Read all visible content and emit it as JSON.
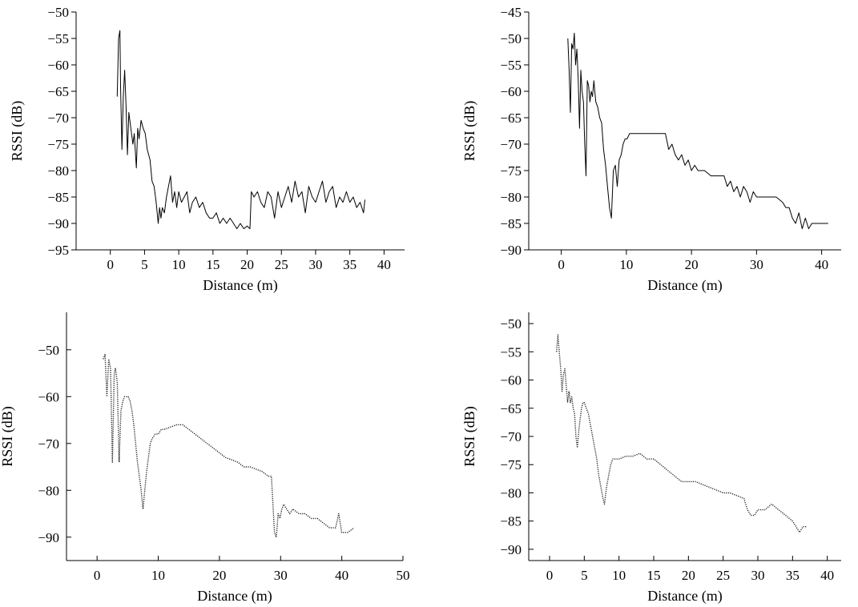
{
  "chart_data": [
    {
      "type": "line",
      "xlabel": "Distance (m)",
      "ylabel": "RSSI (dB)",
      "xlim": [
        -5,
        43
      ],
      "ylim": [
        -95,
        -50
      ],
      "xticks": [
        0,
        5,
        10,
        15,
        20,
        25,
        30,
        35,
        40
      ],
      "yticks": [
        -95,
        -90,
        -85,
        -80,
        -75,
        -70,
        -65,
        -60,
        -55,
        -50
      ],
      "line_style": "solid",
      "series": [
        {
          "x": [
            1.0,
            1.2,
            1.4,
            1.5,
            1.7,
            1.9,
            2.1,
            2.3,
            2.5,
            2.7,
            2.9,
            3.1,
            3.3,
            3.5,
            3.8,
            4.0,
            4.2,
            4.5,
            4.8,
            5.1,
            5.4,
            5.8,
            6.1,
            6.4,
            6.7,
            7.0,
            7.2,
            7.4,
            7.6,
            7.9,
            8.2,
            8.5,
            8.8,
            9.1,
            9.4,
            9.7,
            10.0,
            10.4,
            10.8,
            11.2,
            11.6,
            12.0,
            12.5,
            13.0,
            13.5,
            14.0,
            14.5,
            15.0,
            15.5,
            16.0,
            16.5,
            17.0,
            17.5,
            18.0,
            18.5,
            19.0,
            19.5,
            20.0,
            20.4,
            20.6,
            21.0,
            21.5,
            22.0,
            22.5,
            23.0,
            23.5,
            24.0,
            24.5,
            25.0,
            25.5,
            26.0,
            26.5,
            27.0,
            27.5,
            28.0,
            28.5,
            29.0,
            29.5,
            30.0,
            30.5,
            31.0,
            31.5,
            32.0,
            32.5,
            33.0,
            33.5,
            34.0,
            34.5,
            35.0,
            35.5,
            36.0,
            36.5,
            37.0,
            37.2
          ],
          "y": [
            -66,
            -55,
            -53.5,
            -64,
            -76,
            -66,
            -61,
            -68,
            -77,
            -69,
            -71,
            -73,
            -75,
            -73,
            -79.5,
            -72,
            -74,
            -70.5,
            -72,
            -73,
            -76,
            -78,
            -82,
            -83,
            -86,
            -90,
            -87,
            -89,
            -87,
            -88,
            -85,
            -83,
            -81,
            -86,
            -84,
            -87,
            -84,
            -86,
            -85,
            -84,
            -88,
            -86,
            -85,
            -87,
            -86,
            -88,
            -89,
            -89,
            -88,
            -90,
            -89,
            -90,
            -89,
            -90,
            -91,
            -90,
            -91,
            -90.5,
            -91,
            -84,
            -85,
            -84,
            -86,
            -87,
            -84,
            -85,
            -89,
            -84,
            -87,
            -85,
            -83,
            -86,
            -82,
            -85,
            -84,
            -88,
            -83,
            -85,
            -86,
            -84,
            -82,
            -86,
            -84,
            -83,
            -87,
            -85,
            -86,
            -84,
            -86,
            -85,
            -87,
            -86,
            -88,
            -85.5
          ]
        }
      ]
    },
    {
      "type": "line",
      "xlabel": "Distance (m)",
      "ylabel": "RSSI (dB)",
      "xlim": [
        -5,
        43
      ],
      "ylim": [
        -90,
        -45
      ],
      "xticks": [
        0,
        10,
        20,
        30,
        40
      ],
      "yticks": [
        -90,
        -85,
        -80,
        -75,
        -70,
        -65,
        -60,
        -55,
        -50,
        -45
      ],
      "line_style": "solid",
      "series": [
        {
          "x": [
            1.0,
            1.2,
            1.4,
            1.6,
            1.8,
            2.0,
            2.2,
            2.4,
            2.6,
            2.8,
            3.0,
            3.2,
            3.4,
            3.6,
            3.8,
            4.0,
            4.2,
            4.4,
            4.6,
            4.8,
            5.0,
            5.3,
            5.6,
            5.9,
            6.2,
            6.5,
            6.8,
            7.1,
            7.4,
            7.7,
            8.0,
            8.3,
            8.6,
            8.9,
            9.2,
            9.5,
            9.8,
            10.1,
            10.5,
            11.0,
            16.0,
            16.5,
            17.0,
            17.5,
            18.0,
            18.5,
            19.0,
            19.5,
            20.0,
            20.5,
            21.0,
            22.0,
            23.0,
            24.0,
            25.0,
            25.5,
            26.0,
            26.5,
            27.0,
            27.5,
            28.0,
            28.5,
            29.0,
            29.5,
            30.0,
            31.0,
            32.0,
            33.0,
            34.0,
            34.5,
            35.0,
            35.5,
            36.0,
            36.5,
            37.0,
            37.5,
            38.0,
            38.5,
            39.0,
            40.0,
            41.0
          ],
          "y": [
            -50,
            -56,
            -64,
            -51,
            -52,
            -49,
            -55,
            -52,
            -58,
            -67,
            -56,
            -60,
            -62,
            -70,
            -76,
            -58,
            -59,
            -62,
            -60,
            -61,
            -58,
            -62,
            -63,
            -65,
            -66,
            -71,
            -74,
            -78,
            -82,
            -84,
            -75,
            -74,
            -78,
            -73,
            -72,
            -70,
            -69,
            -69,
            -68,
            -68,
            -68,
            -71,
            -70,
            -72,
            -73,
            -72,
            -74,
            -73,
            -75,
            -74,
            -75,
            -75,
            -76,
            -76,
            -76,
            -78,
            -77,
            -79,
            -78,
            -80,
            -78,
            -79,
            -81,
            -79,
            -80,
            -80,
            -80,
            -80,
            -81,
            -82,
            -82,
            -84,
            -85,
            -83,
            -86,
            -84,
            -86,
            -85,
            -85,
            -85,
            -85
          ]
        }
      ]
    },
    {
      "type": "line",
      "xlabel": "Distance (m)",
      "ylabel": "RSSI (dB)",
      "xlim": [
        -5,
        50
      ],
      "ylim": [
        -95,
        -42
      ],
      "xticks": [
        0,
        10,
        20,
        30,
        40,
        50
      ],
      "yticks": [
        -90,
        -80,
        -70,
        -60,
        -50
      ],
      "line_style": "dotted",
      "series": [
        {
          "x": [
            1.0,
            1.3,
            1.6,
            1.9,
            2.2,
            2.5,
            2.8,
            3.0,
            3.3,
            3.6,
            3.9,
            4.2,
            4.5,
            4.8,
            5.1,
            5.4,
            5.7,
            6.0,
            6.3,
            6.6,
            6.9,
            7.2,
            7.5,
            7.8,
            8.1,
            8.4,
            8.7,
            9.0,
            9.5,
            10.0,
            10.5,
            11.0,
            12.0,
            13.0,
            14.0,
            15.0,
            16.0,
            17.0,
            18.0,
            19.0,
            20.0,
            21.0,
            22.0,
            23.0,
            24.0,
            25.0,
            26.0,
            27.0,
            28.0,
            28.5,
            29.0,
            29.3,
            29.6,
            29.9,
            30.2,
            30.5,
            31.0,
            31.5,
            32.0,
            33.0,
            34.0,
            35.0,
            36.0,
            37.0,
            38.0,
            39.0,
            39.5,
            40.0,
            41.0,
            42.0
          ],
          "y": [
            -52,
            -51,
            -60,
            -52,
            -54,
            -74,
            -55,
            -54,
            -57,
            -74,
            -63,
            -61,
            -60,
            -60,
            -60,
            -61,
            -63,
            -66,
            -70,
            -74,
            -77,
            -80,
            -84,
            -80,
            -76,
            -73,
            -70,
            -69,
            -68,
            -68,
            -67,
            -67,
            -66.5,
            -66,
            -66,
            -67,
            -68,
            -69,
            -70,
            -71,
            -72,
            -73,
            -73.5,
            -74,
            -75,
            -75,
            -75.5,
            -76,
            -77,
            -77,
            -89,
            -90,
            -85,
            -86,
            -84,
            -83,
            -84,
            -85,
            -84,
            -85,
            -85,
            -86,
            -86,
            -87,
            -88,
            -88,
            -85,
            -89,
            -89,
            -88
          ]
        }
      ]
    },
    {
      "type": "line",
      "xlabel": "Distance (m)",
      "ylabel": "RSSI (dB)",
      "xlim": [
        -3,
        42
      ],
      "ylim": [
        -92,
        -48
      ],
      "xticks": [
        0,
        5,
        10,
        15,
        20,
        25,
        30,
        35,
        40
      ],
      "yticks": [
        -90,
        -85,
        -80,
        -75,
        -70,
        -65,
        -60,
        -55,
        -50
      ],
      "line_style": "dotted",
      "series": [
        {
          "x": [
            1.0,
            1.2,
            1.4,
            1.6,
            1.8,
            2.0,
            2.2,
            2.4,
            2.6,
            2.8,
            3.0,
            3.2,
            3.4,
            3.6,
            3.8,
            4.0,
            4.2,
            4.4,
            4.6,
            4.8,
            5.0,
            5.3,
            5.6,
            5.9,
            6.2,
            6.5,
            6.8,
            7.1,
            7.4,
            7.7,
            7.9,
            8.2,
            8.5,
            8.8,
            9.1,
            9.4,
            9.7,
            10.0,
            11.0,
            12.0,
            13.0,
            14.0,
            15.0,
            16.0,
            17.0,
            18.0,
            19.0,
            20.0,
            21.0,
            22.0,
            23.0,
            24.0,
            25.0,
            26.0,
            27.0,
            28.0,
            28.5,
            29.0,
            29.5,
            30.0,
            31.0,
            32.0,
            33.0,
            34.0,
            35.0,
            35.5,
            36.0,
            36.5,
            37.0
          ],
          "y": [
            -55,
            -52,
            -55,
            -58,
            -62,
            -59,
            -58,
            -61,
            -64,
            -62,
            -64,
            -63,
            -65,
            -66,
            -70,
            -72,
            -69,
            -67,
            -65,
            -64,
            -64,
            -65,
            -66,
            -68,
            -70,
            -72,
            -74,
            -77,
            -79,
            -81,
            -82,
            -79,
            -77,
            -75,
            -74,
            -74,
            -74,
            -74,
            -73.5,
            -73.5,
            -73,
            -74,
            -74,
            -75,
            -76,
            -77,
            -78,
            -78,
            -78,
            -78.5,
            -79,
            -79.5,
            -80,
            -80,
            -80.5,
            -81,
            -83,
            -84,
            -84,
            -83,
            -83,
            -82,
            -83,
            -84,
            -85,
            -86,
            -87,
            -86,
            -86
          ]
        }
      ]
    }
  ]
}
